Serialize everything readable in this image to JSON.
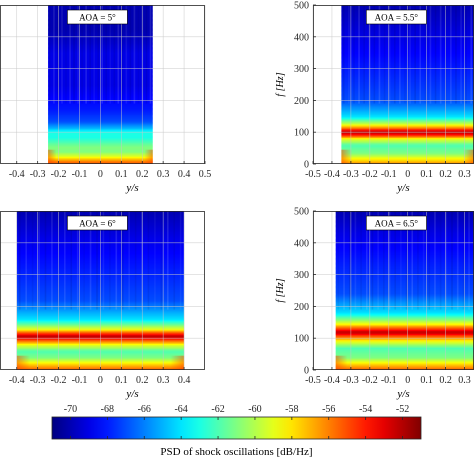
{
  "chart_data": [
    {
      "type": "heatmap",
      "panel": "top-left",
      "annotation": "AOA = 5°",
      "xlabel": "y/s",
      "ylabel": "",
      "xlim": [
        -0.5,
        0.5
      ],
      "x_visible": [
        -0.48,
        0.5
      ],
      "ylim": [
        0,
        500
      ],
      "data_x_extent": [
        -0.25,
        0.25
      ],
      "xticks": [
        "-0.4",
        "-0.3",
        "-0.2",
        "-0.1",
        "0",
        "0.1",
        "0.2",
        "0.3",
        "0.4",
        "0.5"
      ],
      "yticks": [],
      "grid": true,
      "peak_band_hz": [
        90,
        105
      ],
      "psd_profile": [
        {
          "f": 0,
          "db": -55
        },
        {
          "f": 10,
          "db": -56
        },
        {
          "f": 25,
          "db": -59
        },
        {
          "f": 40,
          "db": -61
        },
        {
          "f": 55,
          "db": -61
        },
        {
          "f": 70,
          "db": -62
        },
        {
          "f": 85,
          "db": -63
        },
        {
          "f": 100,
          "db": -63
        },
        {
          "f": 115,
          "db": -65
        },
        {
          "f": 135,
          "db": -67
        },
        {
          "f": 170,
          "db": -68
        },
        {
          "f": 250,
          "db": -69
        },
        {
          "f": 350,
          "db": -69
        },
        {
          "f": 420,
          "db": -70
        },
        {
          "f": 500,
          "db": -70
        }
      ]
    },
    {
      "type": "heatmap",
      "panel": "top-right",
      "annotation": "AOA = 5.5°",
      "xlabel": "y/s",
      "ylabel": "f [Hz]",
      "xlim": [
        -0.5,
        0.5
      ],
      "x_visible": [
        -0.5,
        0.35
      ],
      "ylim": [
        0,
        500
      ],
      "data_x_extent": [
        -0.35,
        0.35
      ],
      "xticks": [
        "-0.5",
        "-0.4",
        "-0.3",
        "-0.2",
        "-0.1",
        "0",
        "0.1",
        "0.2",
        "0.3"
      ],
      "yticks": [
        "0",
        "100",
        "200",
        "300",
        "400",
        "500"
      ],
      "grid": true,
      "peak_band_hz": [
        95,
        108
      ],
      "psd_profile": [
        {
          "f": 0,
          "db": -56
        },
        {
          "f": 15,
          "db": -58
        },
        {
          "f": 35,
          "db": -61
        },
        {
          "f": 60,
          "db": -62
        },
        {
          "f": 80,
          "db": -59
        },
        {
          "f": 92,
          "db": -54
        },
        {
          "f": 102,
          "db": -52
        },
        {
          "f": 112,
          "db": -55
        },
        {
          "f": 125,
          "db": -59
        },
        {
          "f": 150,
          "db": -64
        },
        {
          "f": 200,
          "db": -67
        },
        {
          "f": 300,
          "db": -68
        },
        {
          "f": 400,
          "db": -69
        },
        {
          "f": 500,
          "db": -70
        }
      ]
    },
    {
      "type": "heatmap",
      "panel": "bottom-left",
      "annotation": "AOA = 6°",
      "xlabel": "y/s",
      "ylabel": "",
      "xlim": [
        -0.5,
        0.5
      ],
      "x_visible": [
        -0.48,
        0.5
      ],
      "ylim": [
        0,
        500
      ],
      "data_x_extent": [
        -0.4,
        0.4
      ],
      "xticks": [
        "-0.4",
        "-0.3",
        "-0.2",
        "-0.1",
        "0",
        "0.1",
        "0.2",
        "0.3",
        "0.4"
      ],
      "yticks": [],
      "grid": true,
      "peak_band_hz": [
        100,
        115
      ],
      "psd_profile": [
        {
          "f": 0,
          "db": -55
        },
        {
          "f": 15,
          "db": -57
        },
        {
          "f": 40,
          "db": -61
        },
        {
          "f": 60,
          "db": -62
        },
        {
          "f": 80,
          "db": -59
        },
        {
          "f": 95,
          "db": -55
        },
        {
          "f": 107,
          "db": -52
        },
        {
          "f": 118,
          "db": -55
        },
        {
          "f": 130,
          "db": -59
        },
        {
          "f": 160,
          "db": -64
        },
        {
          "f": 220,
          "db": -67
        },
        {
          "f": 320,
          "db": -68
        },
        {
          "f": 420,
          "db": -69
        },
        {
          "f": 500,
          "db": -70
        }
      ]
    },
    {
      "type": "heatmap",
      "panel": "bottom-right",
      "annotation": "AOA = 6.5°",
      "xlabel": "y/s",
      "ylabel": "f [Hz]",
      "xlim": [
        -0.5,
        0.5
      ],
      "x_visible": [
        -0.5,
        0.35
      ],
      "ylim": [
        0,
        500
      ],
      "data_x_extent": [
        -0.38,
        0.4
      ],
      "xticks": [
        "-0.5",
        "-0.4",
        "-0.3",
        "-0.2",
        "-0.1",
        "0",
        "0.1",
        "0.2",
        "0.3"
      ],
      "yticks": [
        "0",
        "100",
        "200",
        "300",
        "400",
        "500"
      ],
      "grid": true,
      "peak_band_hz": [
        112,
        128
      ],
      "psd_profile": [
        {
          "f": 0,
          "db": -55
        },
        {
          "f": 15,
          "db": -57
        },
        {
          "f": 40,
          "db": -61
        },
        {
          "f": 70,
          "db": -62
        },
        {
          "f": 90,
          "db": -59
        },
        {
          "f": 108,
          "db": -55
        },
        {
          "f": 120,
          "db": -52
        },
        {
          "f": 132,
          "db": -55
        },
        {
          "f": 148,
          "db": -59
        },
        {
          "f": 180,
          "db": -64
        },
        {
          "f": 240,
          "db": -67
        },
        {
          "f": 340,
          "db": -68
        },
        {
          "f": 430,
          "db": -69
        },
        {
          "f": 500,
          "db": -70
        }
      ]
    }
  ],
  "colorbar": {
    "label": "PSD of shock oscillations [dB/Hz]",
    "range": [
      -71,
      -51
    ],
    "ticks": [
      "-70",
      "-68",
      "-66",
      "-64",
      "-62",
      "-60",
      "-58",
      "-56",
      "-54",
      "-52"
    ],
    "colormap": "jet",
    "colors": [
      "#00007f",
      "#0000ff",
      "#007fff",
      "#00ffff",
      "#7fff7f",
      "#ffff00",
      "#ff7f00",
      "#ff0000",
      "#7f0000"
    ]
  }
}
